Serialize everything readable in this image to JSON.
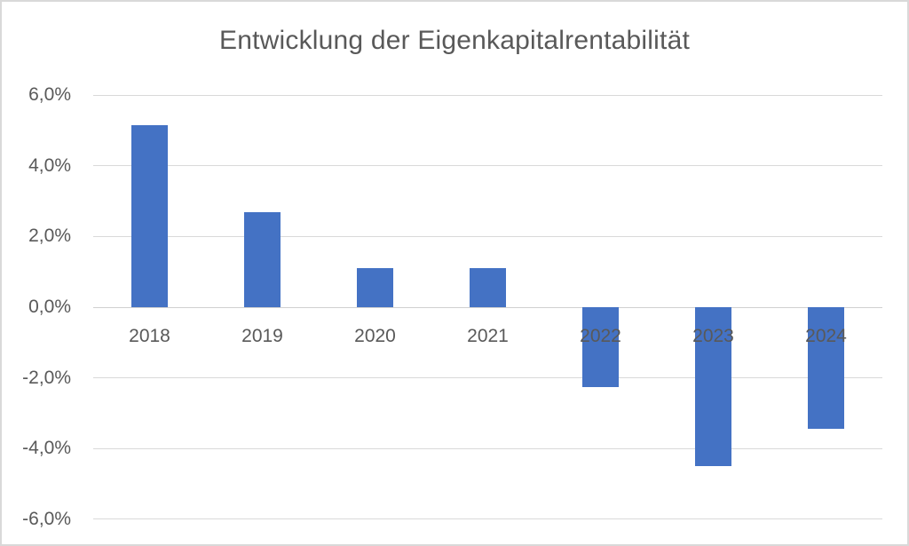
{
  "chart_data": {
    "type": "bar",
    "title": "Entwicklung der Eigenkapitalrentabilität",
    "categories": [
      "2018",
      "2019",
      "2020",
      "2021",
      "2022",
      "2023",
      "2024"
    ],
    "values": [
      5.15,
      2.7,
      1.1,
      1.1,
      -2.25,
      -4.5,
      -3.45
    ],
    "unit": "%",
    "value_format": "german_percent",
    "ylim": [
      -6,
      6
    ],
    "yticks": [
      6,
      4,
      2,
      0,
      -2,
      -4,
      -6
    ],
    "ytick_labels": [
      "6,0%",
      "4,0%",
      "2,0%",
      "0,0%",
      "-2,0%",
      "-4,0%",
      "-6,0%"
    ],
    "xlabel": "",
    "ylabel": "",
    "grid": true,
    "legend": false,
    "series_count": 1,
    "colors": {
      "bar": "#4472C4",
      "gridline": "#D9D9D9",
      "axis_text": "#595959",
      "title_text": "#595959",
      "background": "#FFFFFF",
      "border": "#D9D9D9"
    }
  }
}
